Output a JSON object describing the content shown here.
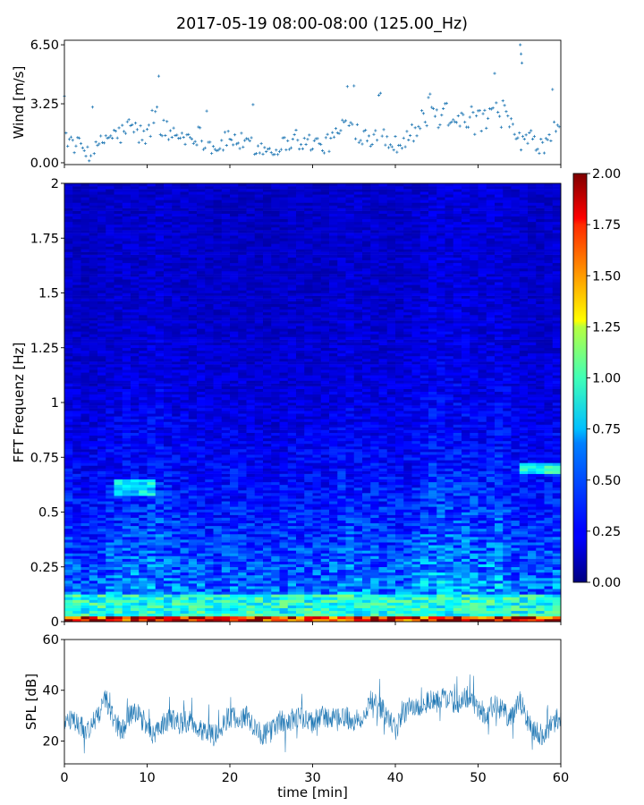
{
  "figure": {
    "title": "2017-05-19 08:00-08:00 (125.00_Hz)"
  },
  "chart_data": [
    {
      "type": "scatter",
      "panel": "wind",
      "ylabel": "Wind [m/s]",
      "xlabel": "",
      "xlim": [
        0,
        60
      ],
      "ylim": [
        -0.1,
        6.75
      ],
      "yticks": [
        0.0,
        3.25,
        6.5
      ],
      "ytick_labels": [
        "0.00",
        "3.25",
        "6.50"
      ],
      "xticks": [
        0,
        10,
        20,
        30,
        40,
        50,
        60
      ],
      "xtick_labels_visible": false,
      "marker": "+",
      "color": "#1f77b4",
      "sample_step_min": 0.2,
      "envelope": {
        "x": [
          0,
          1,
          2,
          3,
          4,
          5,
          6,
          7,
          8,
          9,
          10,
          11,
          12,
          13,
          14,
          15,
          16,
          17,
          18,
          19,
          20,
          21,
          22,
          23,
          24,
          25,
          26,
          27,
          28,
          29,
          30,
          31,
          32,
          33,
          34,
          35,
          36,
          37,
          38,
          39,
          40,
          41,
          42,
          43,
          44,
          45,
          46,
          47,
          48,
          49,
          50,
          51,
          52,
          53,
          54,
          55,
          56,
          57,
          58,
          59,
          60
        ],
        "y": [
          1.6,
          1.0,
          0.9,
          0.5,
          0.8,
          1.4,
          1.5,
          1.6,
          2.0,
          1.6,
          1.4,
          3.0,
          1.8,
          1.6,
          1.5,
          1.4,
          1.6,
          1.2,
          0.8,
          1.0,
          1.4,
          1.2,
          1.0,
          0.9,
          0.8,
          0.7,
          0.9,
          1.1,
          1.4,
          1.0,
          1.2,
          0.9,
          1.1,
          1.6,
          2.2,
          1.8,
          1.6,
          1.5,
          1.8,
          1.2,
          1.0,
          1.4,
          1.6,
          2.0,
          3.0,
          2.6,
          2.8,
          2.6,
          2.8,
          2.4,
          2.2,
          2.4,
          2.6,
          2.8,
          1.8,
          1.2,
          1.4,
          1.0,
          0.9,
          1.6,
          2.0
        ]
      },
      "spread": 0.6
    },
    {
      "type": "heatmap",
      "panel": "spectrogram",
      "ylabel": "FFT Frequenz [Hz]",
      "xlabel": "",
      "xlim": [
        0,
        60
      ],
      "ylim": [
        0,
        2
      ],
      "yticks": [
        0,
        0.25,
        0.5,
        0.75,
        1,
        1.25,
        1.5,
        1.75,
        2
      ],
      "ytick_labels": [
        "0",
        "0.25",
        "0.5",
        "0.75",
        "1",
        "1.25",
        "1.5",
        "1.75",
        "2"
      ],
      "xticks": [
        0,
        10,
        20,
        30,
        40,
        50,
        60
      ],
      "xtick_labels_visible": false,
      "colormap": "jet",
      "clim": [
        0.0,
        2.0
      ],
      "colorbar_ticks": [
        0.0,
        0.25,
        0.5,
        0.75,
        1.0,
        1.25,
        1.5,
        1.75,
        2.0
      ],
      "colorbar_tick_labels": [
        "0.00",
        "0.25",
        "0.50",
        "0.75",
        "1.00",
        "1.25",
        "1.50",
        "1.75",
        "2.00"
      ],
      "n_time_bins": 60,
      "n_freq_bins": 160,
      "typical_level_low_freq": 0.6,
      "typical_level_high_freq": 0.15,
      "hotspots": [
        {
          "t": [
            6,
            11
          ],
          "f": [
            0.57,
            0.65
          ],
          "level": 0.75
        },
        {
          "t": [
            55.5,
            60
          ],
          "f": [
            0.67,
            0.73
          ],
          "level": 0.8
        },
        {
          "t": [
            0,
            60
          ],
          "f": [
            0.0,
            0.03
          ],
          "level": 1.9
        },
        {
          "t": [
            0,
            60
          ],
          "f": [
            0.03,
            0.12
          ],
          "level": 0.85
        }
      ]
    },
    {
      "type": "line",
      "panel": "spl",
      "ylabel": "SPL [dB]",
      "xlabel": "time [min]",
      "xlim": [
        0,
        60
      ],
      "ylim": [
        11,
        60
      ],
      "yticks": [
        20,
        40,
        60
      ],
      "ytick_labels": [
        "20",
        "40",
        "60"
      ],
      "xticks": [
        0,
        10,
        20,
        30,
        40,
        50,
        60
      ],
      "xtick_labels": [
        "0",
        "10",
        "20",
        "30",
        "40",
        "50",
        "60"
      ],
      "color": "#1f77b4",
      "sample_step_min": 0.05,
      "envelope": {
        "x": [
          0,
          1,
          2,
          3,
          4,
          5,
          6,
          7,
          8,
          9,
          10,
          11,
          12,
          13,
          14,
          15,
          16,
          17,
          18,
          19,
          20,
          21,
          22,
          23,
          24,
          25,
          26,
          27,
          28,
          29,
          30,
          31,
          32,
          33,
          34,
          35,
          36,
          37,
          38,
          39,
          40,
          41,
          42,
          43,
          44,
          45,
          46,
          47,
          48,
          49,
          50,
          51,
          52,
          53,
          54,
          55,
          56,
          57,
          58,
          59,
          60
        ],
        "y": [
          27,
          28,
          26,
          24,
          30,
          37,
          28,
          24,
          31,
          30,
          26,
          22,
          27,
          29,
          27,
          28,
          26,
          24,
          22,
          26,
          30,
          28,
          30,
          26,
          22,
          24,
          28,
          27,
          30,
          28,
          27,
          30,
          29,
          28,
          30,
          27,
          30,
          36,
          34,
          30,
          24,
          31,
          34,
          33,
          36,
          35,
          38,
          35,
          36,
          38,
          33,
          30,
          35,
          32,
          28,
          36,
          28,
          24,
          22,
          27,
          30
        ]
      },
      "spread": 4.5
    }
  ]
}
